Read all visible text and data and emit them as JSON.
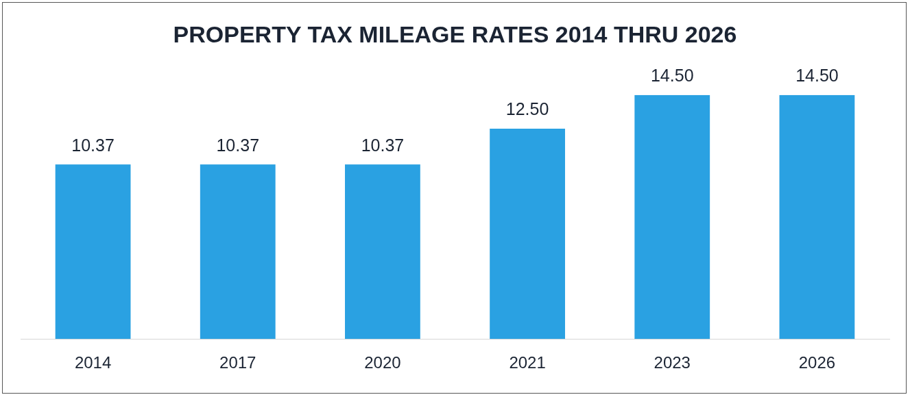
{
  "chart_data": {
    "type": "bar",
    "title": "PROPERTY TAX MILEAGE RATES 2014 THRU 2026",
    "categories": [
      "2014",
      "2017",
      "2020",
      "2021",
      "2023",
      "2026"
    ],
    "values": [
      10.37,
      10.37,
      10.37,
      12.5,
      14.5,
      14.5
    ],
    "value_labels": [
      "10.37",
      "10.37",
      "10.37",
      "12.50",
      "14.50",
      "14.50"
    ],
    "color": "#2aa1e2",
    "grid": false,
    "legend": false,
    "tick_labels": "x"
  }
}
